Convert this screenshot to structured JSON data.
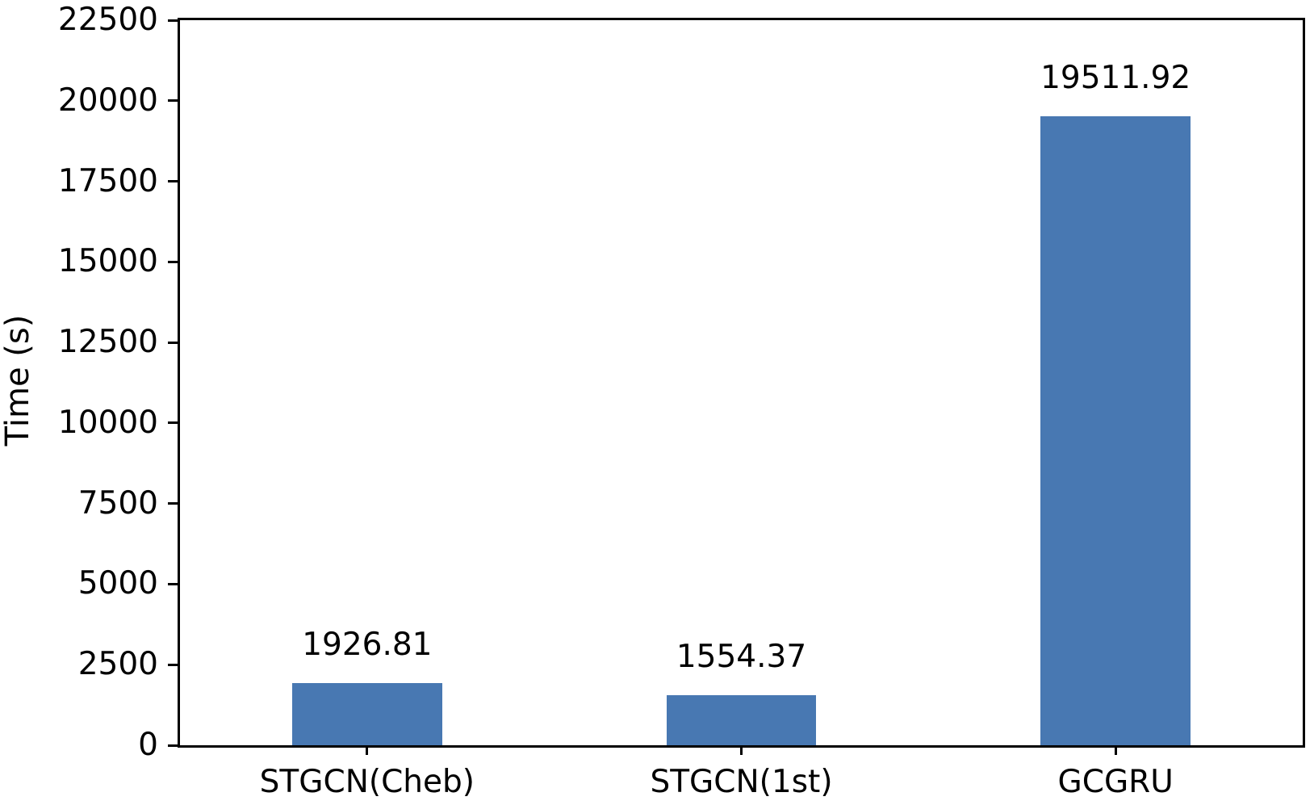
{
  "chart_data": {
    "type": "bar",
    "title": "",
    "xlabel": "",
    "ylabel": "Time (s)",
    "categories": [
      "STGCN(Cheb)",
      "STGCN(1st)",
      "GCGRU"
    ],
    "values": [
      1926.81,
      1554.37,
      19511.92
    ],
    "value_labels": [
      "1926.81",
      "1554.37",
      "19511.92"
    ],
    "ylim": [
      0,
      22500
    ],
    "yticks": [
      0,
      2500,
      5000,
      7500,
      10000,
      12500,
      15000,
      17500,
      20000,
      22500
    ],
    "grid": false,
    "legend": null,
    "bar_width_fraction": 0.4,
    "colors": {
      "bar": "#4878B2",
      "axis": "#000000",
      "text": "#000000",
      "background": "#FFFFFF"
    }
  }
}
